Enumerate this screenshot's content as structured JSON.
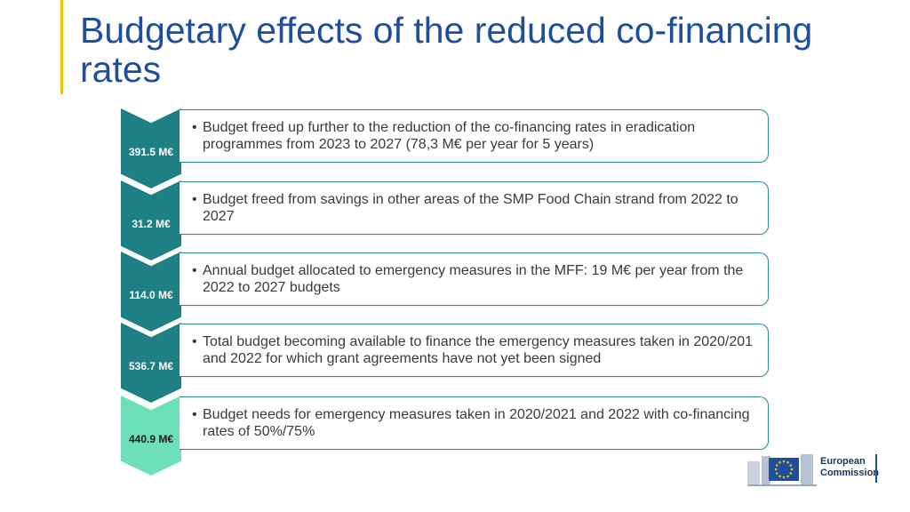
{
  "slide": {
    "title": "Budgetary effects of the reduced co-financing rates",
    "accent_color": "#f2c200",
    "title_color": "#1f4e9c"
  },
  "items": [
    {
      "amount": "391.5 M€",
      "text": "Budget freed up further to the reduction of the co-financing rates in eradication programmes from 2023 to 2027 (78,3 M€ per year for 5 years)",
      "color": "#1e8085",
      "text_color": "#ffffff"
    },
    {
      "amount": "31.2 M€",
      "text": "Budget freed from savings in other areas of the SMP Food Chain strand from 2022 to 2027",
      "color": "#1e8085",
      "text_color": "#ffffff"
    },
    {
      "amount": "114.0 M€",
      "text": "Annual budget allocated to emergency measures in the MFF: 19 M€ per year from the 2022 to 2027 budgets",
      "color": "#1e8085",
      "text_color": "#ffffff"
    },
    {
      "amount": "536.7 M€",
      "text": "Total budget becoming available to finance the emergency measures taken in 2020/201 and 2022 for which grant agreements have not yet been signed",
      "color": "#1e8085",
      "text_color": "#ffffff"
    },
    {
      "amount": "440.9 M€",
      "text": "Budget needs for emergency measures taken in 2020/2021 and 2022 with co-financing rates of 50%/75%",
      "color": "#6ee0b8",
      "text_color": "#1a1a1a"
    }
  ],
  "logo": {
    "name_line1": "European",
    "name_line2": "Commission",
    "icon": "eu-flag-icon"
  }
}
